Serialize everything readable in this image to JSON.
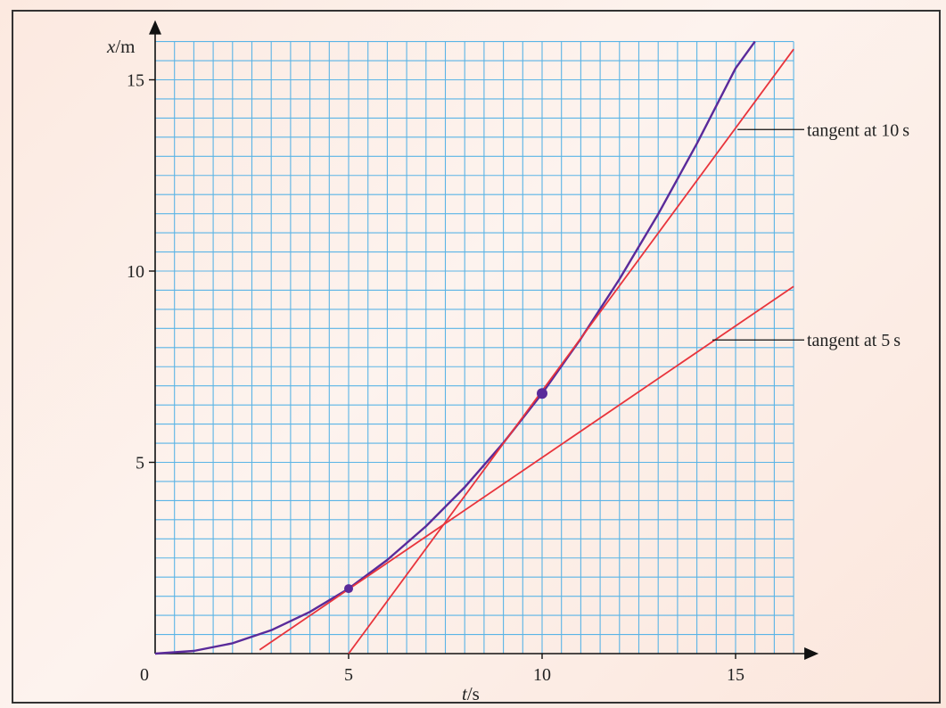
{
  "chart_data": {
    "type": "line",
    "xlabel_var": "t",
    "xlabel_unit": "/s",
    "ylabel_var": "x",
    "ylabel_unit": "/m",
    "origin_label": "0",
    "x_ticks": [
      "5",
      "10",
      "15"
    ],
    "y_ticks": [
      "5",
      "10",
      "15"
    ],
    "xlim": [
      0,
      16.5
    ],
    "ylim": [
      0,
      16
    ],
    "grid": true,
    "grid_color": "#5ab4e6",
    "series": [
      {
        "color": "#5a2a9a",
        "x": [
          0,
          1,
          2,
          3,
          4,
          5,
          6,
          7,
          8,
          9,
          10,
          11,
          12,
          13,
          14,
          15,
          15.5
        ],
        "y": [
          0,
          0.07,
          0.27,
          0.61,
          1.09,
          1.7,
          2.45,
          3.33,
          4.35,
          5.51,
          6.8,
          8.23,
          9.79,
          11.49,
          13.33,
          15.3,
          16.0
        ]
      },
      {
        "color": "#e8343c",
        "x": [
          2.7,
          16.5
        ],
        "y": [
          0.1,
          9.6
        ]
      },
      {
        "color": "#e8343c",
        "x": [
          5,
          16.5
        ],
        "y": [
          0,
          15.8
        ]
      }
    ],
    "points": [
      {
        "x": 5,
        "y": 1.7
      },
      {
        "x": 10,
        "y": 6.8
      }
    ],
    "annotations": [
      {
        "text": "tangent at 10 s",
        "line_from": [
          15.05,
          13.7
        ]
      },
      {
        "text": "tangent at 5 s",
        "line_from": [
          14.4,
          8.2
        ]
      }
    ]
  }
}
